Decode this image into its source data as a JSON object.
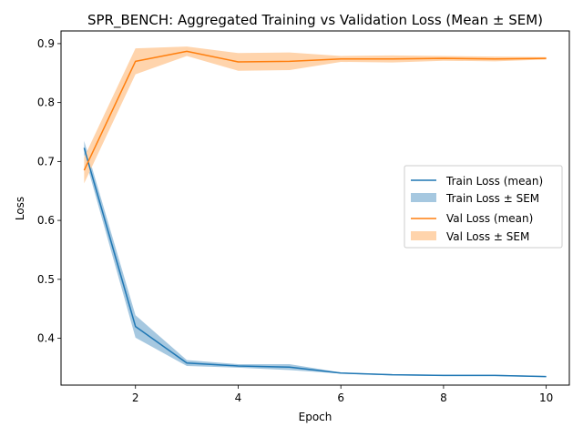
{
  "chart_data": {
    "type": "line",
    "title": "SPR_BENCH: Aggregated Training vs Validation Loss (Mean ± SEM)",
    "xlabel": "Epoch",
    "ylabel": "Loss",
    "xlim": [
      0.55,
      10.45
    ],
    "ylim": [
      0.3205,
      0.9215
    ],
    "xticks": [
      2,
      4,
      6,
      8,
      10
    ],
    "yticks": [
      0.4,
      0.5,
      0.6,
      0.7,
      0.8,
      0.9
    ],
    "grid": false,
    "legend_position": "center-right",
    "x": [
      1,
      2,
      3,
      4,
      5,
      6,
      7,
      8,
      9,
      10
    ],
    "series": [
      {
        "name": "Train Loss (mean)",
        "band_name": "Train Loss ± SEM",
        "color": "#1f77b4",
        "band_color": "#a6c8e0",
        "values": [
          0.723,
          0.42,
          0.358,
          0.353,
          0.351,
          0.341,
          0.338,
          0.337,
          0.337,
          0.335
        ],
        "sem": [
          0.012,
          0.019,
          0.005,
          0.003,
          0.005,
          0.001,
          0.001,
          0.001,
          0.001,
          0.001
        ]
      },
      {
        "name": "Val Loss (mean)",
        "band_name": "Val Loss ± SEM",
        "color": "#ff7f0e",
        "band_color": "#ffd4ac",
        "values": [
          0.685,
          0.87,
          0.887,
          0.869,
          0.87,
          0.874,
          0.874,
          0.875,
          0.874,
          0.875
        ],
        "sem": [
          0.022,
          0.022,
          0.008,
          0.015,
          0.015,
          0.005,
          0.006,
          0.004,
          0.004,
          0.002
        ]
      }
    ]
  }
}
